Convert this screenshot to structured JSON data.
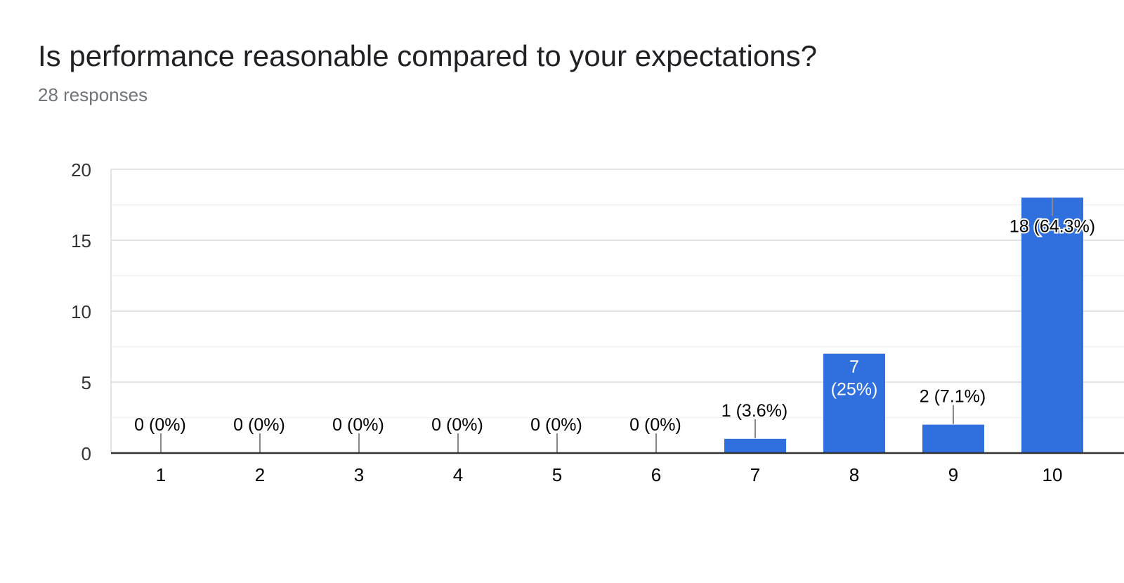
{
  "header": {
    "title": "Is performance reasonable compared to your expectations?",
    "subtitle": "28 responses"
  },
  "colors": {
    "bar": "#2f6fde",
    "grid_major": "#e3e3e3",
    "grid_minor": "#f1f1f1",
    "axis": "#333333",
    "text": "#202124",
    "leader": "#888888"
  },
  "chart_data": {
    "type": "bar",
    "title": "Is performance reasonable compared to your expectations?",
    "subtitle": "28 responses",
    "categories": [
      "1",
      "2",
      "3",
      "4",
      "5",
      "6",
      "7",
      "8",
      "9",
      "10"
    ],
    "values": [
      0,
      0,
      0,
      0,
      0,
      0,
      1,
      7,
      2,
      18
    ],
    "labels": [
      "0 (0%)",
      "0 (0%)",
      "0 (0%)",
      "0 (0%)",
      "0 (0%)",
      "0 (0%)",
      "1 (3.6%)",
      "7 (25%)",
      "2 (7.1%)",
      "18 (64.3%)"
    ],
    "yticks": [
      0,
      5,
      10,
      15,
      20
    ],
    "ylim": [
      0,
      20
    ],
    "xlabel": "",
    "ylabel": "",
    "grid": true,
    "legend": "none"
  }
}
